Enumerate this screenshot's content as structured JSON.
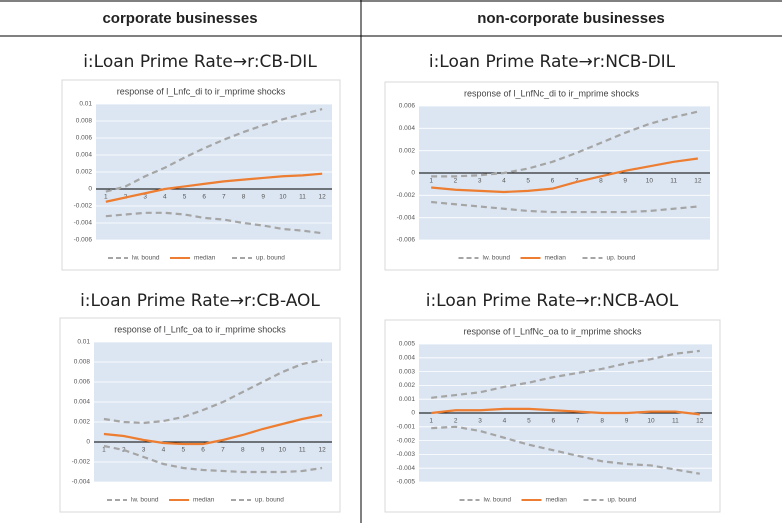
{
  "headers": [
    "corporate businesses",
    "non-corporate businesses"
  ],
  "panel_titles": [
    "i:Loan Prime Rate→r:CB-DIL",
    "i:Loan Prime Rate→r:NCB-DIL",
    "i:Loan Prime Rate→r:CB-AOL",
    "i:Loan Prime Rate→r:NCB-AOL"
  ],
  "chart_data": [
    {
      "type": "line",
      "title": "response of l_Lnfc_di to ir_mprime shocks",
      "categories": [
        "1",
        "2",
        "3",
        "4",
        "5",
        "6",
        "7",
        "8",
        "9",
        "10",
        "11",
        "12"
      ],
      "ylim": [
        -0.006,
        0.01
      ],
      "yticks": [
        -0.006,
        -0.004,
        -0.002,
        0,
        0.002,
        0.004,
        0.006,
        0.008,
        0.01
      ],
      "grid": true,
      "series": [
        {
          "name": "lw. bound",
          "color": "#a5a5a5",
          "dash": true,
          "values": [
            -0.0032,
            -0.003,
            -0.0028,
            -0.0028,
            -0.003,
            -0.0034,
            -0.0036,
            -0.004,
            -0.0043,
            -0.0047,
            -0.0049,
            -0.0052
          ]
        },
        {
          "name": "median",
          "color": "#ed7d31",
          "dash": false,
          "values": [
            -0.0015,
            -0.001,
            -0.0005,
            0,
            0.0003,
            0.0006,
            0.0009,
            0.0011,
            0.0013,
            0.0015,
            0.0016,
            0.0018
          ]
        },
        {
          "name": "up. bound",
          "color": "#a5a5a5",
          "dash": true,
          "values": [
            -0.0003,
            0.0003,
            0.0015,
            0.0025,
            0.0037,
            0.0048,
            0.0058,
            0.0067,
            0.0075,
            0.0082,
            0.0088,
            0.0094
          ]
        }
      ]
    },
    {
      "type": "line",
      "title": "response of l_LnfNc_di to ir_mprime shocks",
      "categories": [
        "1",
        "2",
        "3",
        "4",
        "5",
        "6",
        "7",
        "8",
        "9",
        "10",
        "11",
        "12"
      ],
      "ylim": [
        -0.006,
        0.006
      ],
      "yticks": [
        -0.006,
        -0.004,
        -0.002,
        0,
        0.002,
        0.004,
        0.006
      ],
      "grid": true,
      "series": [
        {
          "name": "lw. bound",
          "color": "#a5a5a5",
          "dash": true,
          "values": [
            -0.0026,
            -0.0028,
            -0.003,
            -0.0032,
            -0.0034,
            -0.0035,
            -0.0035,
            -0.0035,
            -0.0035,
            -0.0034,
            -0.0032,
            -0.003
          ]
        },
        {
          "name": "median",
          "color": "#ed7d31",
          "dash": false,
          "values": [
            -0.0013,
            -0.0015,
            -0.0016,
            -0.0017,
            -0.0016,
            -0.0014,
            -0.0008,
            -0.0003,
            0.0002,
            0.0006,
            0.001,
            0.0013
          ]
        },
        {
          "name": "up. bound",
          "color": "#a5a5a5",
          "dash": true,
          "values": [
            -0.0003,
            -0.0003,
            -0.0002,
            0,
            0.0004,
            0.001,
            0.0018,
            0.0027,
            0.0036,
            0.0044,
            0.005,
            0.0055
          ]
        }
      ]
    },
    {
      "type": "line",
      "title": "response of l_Lnfc_oa to ir_mprime shocks",
      "categories": [
        "1",
        "2",
        "3",
        "4",
        "5",
        "6",
        "7",
        "8",
        "9",
        "10",
        "11",
        "12"
      ],
      "ylim": [
        -0.004,
        0.01
      ],
      "yticks": [
        -0.004,
        -0.002,
        0,
        0.002,
        0.004,
        0.006,
        0.008,
        0.01
      ],
      "grid": true,
      "series": [
        {
          "name": "lw. bound",
          "color": "#a5a5a5",
          "dash": true,
          "values": [
            -0.0004,
            -0.0008,
            -0.0015,
            -0.0022,
            -0.0026,
            -0.0028,
            -0.0029,
            -0.003,
            -0.003,
            -0.003,
            -0.0029,
            -0.0026
          ]
        },
        {
          "name": "median",
          "color": "#ed7d31",
          "dash": false,
          "values": [
            0.0008,
            0.0006,
            0.0002,
            -0.0001,
            -0.0002,
            -0.0002,
            0.0002,
            0.0007,
            0.0013,
            0.0018,
            0.0023,
            0.0027
          ]
        },
        {
          "name": "up. bound",
          "color": "#a5a5a5",
          "dash": true,
          "values": [
            0.0023,
            0.002,
            0.0019,
            0.0021,
            0.0025,
            0.0032,
            0.004,
            0.005,
            0.006,
            0.007,
            0.0078,
            0.0082
          ]
        }
      ]
    },
    {
      "type": "line",
      "title": "response of l_LnfNc_oa to ir_mprime shocks",
      "categories": [
        "1",
        "2",
        "3",
        "4",
        "5",
        "6",
        "7",
        "8",
        "9",
        "10",
        "11",
        "12"
      ],
      "ylim": [
        -0.005,
        0.005
      ],
      "yticks": [
        -0.005,
        -0.004,
        -0.003,
        -0.002,
        -0.001,
        0,
        0.001,
        0.002,
        0.003,
        0.004,
        0.005
      ],
      "grid": true,
      "series": [
        {
          "name": "lw. bound",
          "color": "#a5a5a5",
          "dash": true,
          "values": [
            -0.0011,
            -0.001,
            -0.0013,
            -0.0018,
            -0.0023,
            -0.0027,
            -0.0031,
            -0.0035,
            -0.0037,
            -0.0038,
            -0.0041,
            -0.0044
          ]
        },
        {
          "name": "median",
          "color": "#ed7d31",
          "dash": false,
          "values": [
            0,
            0.0002,
            0.0002,
            0.0003,
            0.0003,
            0.0002,
            0.0001,
            0,
            0,
            0.0001,
            0.0001,
            -0.0001
          ]
        },
        {
          "name": "up. bound",
          "color": "#a5a5a5",
          "dash": true,
          "values": [
            0.0011,
            0.0013,
            0.0015,
            0.0019,
            0.0022,
            0.0026,
            0.0029,
            0.0032,
            0.0036,
            0.0039,
            0.0043,
            0.0045
          ]
        }
      ]
    }
  ]
}
